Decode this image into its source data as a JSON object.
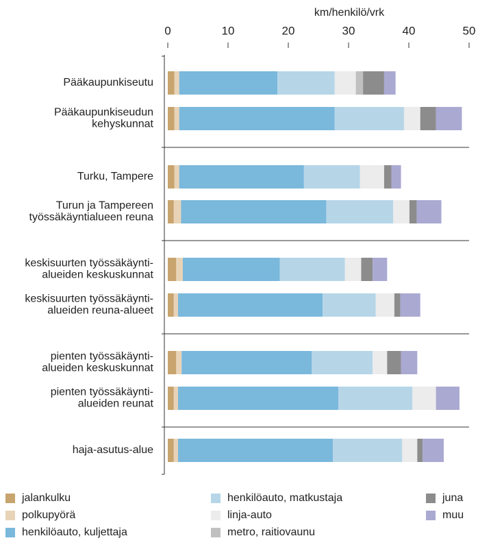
{
  "chart_data": {
    "type": "stacked-barh",
    "xlabel": "km/henkilö/vrk",
    "categories": [
      "Pääkaupunkiseutu",
      "Pääkaupunkiseudun\nkehyskunnat",
      "Turku, Tampere",
      "Turun ja Tampereen\ntyössäkäyntialueen reuna",
      "keskisuurten työssäkäynti-\nalueiden keskuskunnat",
      "keskisuurten työssäkäynti-\nalueiden reuna-alueet",
      "pienten työssäkäynti-\nalueiden keskuskunnat",
      "pienten työssäkäynti-\nalueiden reunat",
      "haja-asutus-alue"
    ],
    "series": [
      {
        "name": "jalankulku",
        "color": "#c8a46e",
        "values": [
          1.1,
          1.1,
          1.1,
          1.0,
          1.4,
          1.0,
          1.4,
          1.0,
          1.0
        ]
      },
      {
        "name": "polkupyörä",
        "color": "#e8d3b7",
        "values": [
          0.8,
          0.8,
          0.8,
          1.2,
          1.1,
          0.7,
          0.9,
          0.7,
          0.7
        ]
      },
      {
        "name": "henkilöauto, kuljettaja",
        "color": "#7ab8dc",
        "values": [
          16.3,
          25.8,
          20.7,
          24.1,
          16.1,
          24.0,
          21.6,
          26.6,
          25.7
        ]
      },
      {
        "name": "henkilöauto, matkustaja",
        "color": "#b6d6e8",
        "values": [
          9.5,
          11.5,
          9.3,
          11.1,
          10.8,
          8.8,
          10.1,
          12.3,
          11.5
        ]
      },
      {
        "name": "linja-auto",
        "color": "#ececec",
        "values": [
          3.5,
          2.7,
          4.0,
          2.7,
          2.7,
          3.1,
          2.4,
          3.9,
          2.5
        ]
      },
      {
        "name": "metro, raitiovaunu",
        "color": "#c0c0c0",
        "values": [
          1.2,
          0,
          0,
          0,
          0,
          0,
          0,
          0,
          0
        ]
      },
      {
        "name": "juna",
        "color": "#8c8c8c",
        "values": [
          3.5,
          2.6,
          1.2,
          1.2,
          1.9,
          1.0,
          2.3,
          0,
          0.9
        ]
      },
      {
        "name": "muu",
        "color": "#aaa9d2",
        "values": [
          1.9,
          4.3,
          1.6,
          4.1,
          2.4,
          3.3,
          2.7,
          3.9,
          3.5
        ]
      }
    ],
    "xlim": [
      0,
      50
    ],
    "xticks": [
      0,
      10,
      20,
      30,
      40,
      50
    ]
  }
}
